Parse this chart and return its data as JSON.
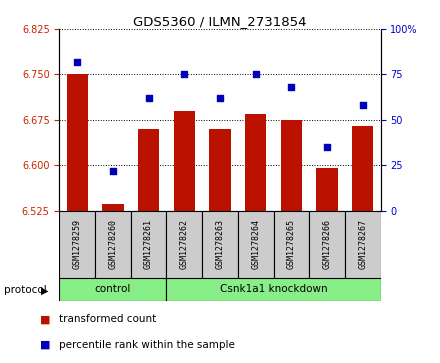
{
  "title": "GDS5360 / ILMN_2731854",
  "samples": [
    "GSM1278259",
    "GSM1278260",
    "GSM1278261",
    "GSM1278262",
    "GSM1278263",
    "GSM1278264",
    "GSM1278265",
    "GSM1278266",
    "GSM1278267"
  ],
  "transformed_count": [
    6.75,
    6.535,
    6.66,
    6.69,
    6.66,
    6.685,
    6.675,
    6.595,
    6.665
  ],
  "percentile_rank": [
    82,
    22,
    62,
    75,
    62,
    75,
    68,
    35,
    58
  ],
  "ylim_left": [
    6.525,
    6.825
  ],
  "ylim_right": [
    0,
    100
  ],
  "yticks_left": [
    6.525,
    6.6,
    6.675,
    6.75,
    6.825
  ],
  "yticks_right": [
    0,
    25,
    50,
    75,
    100
  ],
  "bar_color": "#bb1100",
  "scatter_color": "#0000bb",
  "protocol_groups": [
    {
      "label": "control",
      "start": 0,
      "end": 3
    },
    {
      "label": "Csnk1a1 knockdown",
      "start": 3,
      "end": 9
    }
  ],
  "protocol_color": "#88ee88",
  "protocol_text_color": "#000000",
  "label_bar": "transformed count",
  "label_scatter": "percentile rank within the sample",
  "bg_color": "#ffffff",
  "tick_label_color_left": "#cc2200",
  "tick_label_color_right": "#0000cc",
  "sample_bg_color": "#cccccc"
}
